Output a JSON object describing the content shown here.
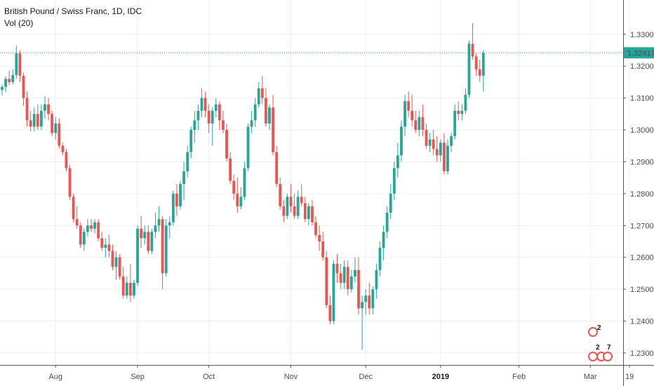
{
  "legend": {
    "symbol_line": "British Pound / Swiss Franc, 1D, IDC",
    "indicator_line": "Vol (20)"
  },
  "colors": {
    "up": "#26a69a",
    "down": "#ef5350",
    "grid": "#e8edf2",
    "axis_line": "#555555",
    "price_line": "#26a69a",
    "price_label_bg": "#26a69a",
    "badge": "#ef5350"
  },
  "badges": {
    "count_top": "2",
    "count_bottom_left": "2",
    "count_bottom_right": "7"
  },
  "chart_data": {
    "type": "candlestick",
    "title": "British Pound / Swiss Franc, 1D, IDC",
    "ylim": [
      1.228,
      1.337
    ],
    "yticks": [
      "1.33000",
      "1.32000",
      "1.31000",
      "1.30000",
      "1.29000",
      "1.28000",
      "1.27000",
      "1.26000",
      "1.25000",
      "1.24000",
      "1.23000"
    ],
    "xticks": [
      {
        "label": "Aug",
        "index": 15,
        "bold": false
      },
      {
        "label": "Sep",
        "index": 38,
        "bold": false
      },
      {
        "label": "Oct",
        "index": 58,
        "bold": false
      },
      {
        "label": "Nov",
        "index": 81,
        "bold": false
      },
      {
        "label": "Dec",
        "index": 102,
        "bold": false
      },
      {
        "label": "2019",
        "index": 123,
        "bold": true
      },
      {
        "label": "Feb",
        "index": 145,
        "bold": false
      },
      {
        "label": "Mar",
        "index": 165,
        "bold": false
      },
      {
        "label": "19",
        "index": 176,
        "bold": false
      }
    ],
    "last_price": "1.32417",
    "grid": true,
    "candles": [
      [
        1.3125,
        1.3142,
        1.3108,
        1.3135
      ],
      [
        1.3135,
        1.3168,
        1.3118,
        1.316
      ],
      [
        1.316,
        1.3185,
        1.314,
        1.315
      ],
      [
        1.315,
        1.319,
        1.3142,
        1.3172
      ],
      [
        1.3172,
        1.3265,
        1.316,
        1.324
      ],
      [
        1.324,
        1.325,
        1.315,
        1.317
      ],
      [
        1.317,
        1.318,
        1.3075,
        1.31
      ],
      [
        1.31,
        1.312,
        1.301,
        1.303
      ],
      [
        1.303,
        1.306,
        1.2995,
        1.301
      ],
      [
        1.301,
        1.307,
        1.2995,
        1.305
      ],
      [
        1.305,
        1.308,
        1.3,
        1.301
      ],
      [
        1.301,
        1.308,
        1.3,
        1.306
      ],
      [
        1.306,
        1.3105,
        1.3035,
        1.308
      ],
      [
        1.308,
        1.31,
        1.303,
        1.305
      ],
      [
        1.305,
        1.306,
        1.298,
        1.299
      ],
      [
        1.299,
        1.304,
        1.297,
        1.302
      ],
      [
        1.302,
        1.3035,
        1.294,
        1.295
      ],
      [
        1.295,
        1.296,
        1.292,
        1.293
      ],
      [
        1.293,
        1.294,
        1.287,
        1.288
      ],
      [
        1.288,
        1.289,
        1.278,
        1.279
      ],
      [
        1.279,
        1.28,
        1.271,
        1.272
      ],
      [
        1.272,
        1.276,
        1.269,
        1.27
      ],
      [
        1.27,
        1.271,
        1.263,
        1.264
      ],
      [
        1.264,
        1.269,
        1.262,
        1.268
      ],
      [
        1.268,
        1.272,
        1.2665,
        1.27
      ],
      [
        1.27,
        1.272,
        1.268,
        1.269
      ],
      [
        1.269,
        1.272,
        1.2675,
        1.271
      ],
      [
        1.271,
        1.272,
        1.265,
        1.266
      ],
      [
        1.266,
        1.268,
        1.262,
        1.263
      ],
      [
        1.263,
        1.266,
        1.26,
        1.264
      ],
      [
        1.264,
        1.267,
        1.26,
        1.262
      ],
      [
        1.262,
        1.264,
        1.256,
        1.257
      ],
      [
        1.257,
        1.262,
        1.253,
        1.26
      ],
      [
        1.26,
        1.261,
        1.253,
        1.254
      ],
      [
        1.254,
        1.257,
        1.247,
        1.248
      ],
      [
        1.248,
        1.254,
        1.247,
        1.252
      ],
      [
        1.252,
        1.258,
        1.246,
        1.248
      ],
      [
        1.248,
        1.253,
        1.247,
        1.252
      ],
      [
        1.252,
        1.27,
        1.251,
        1.269
      ],
      [
        1.269,
        1.273,
        1.263,
        1.266
      ],
      [
        1.266,
        1.27,
        1.264,
        1.268
      ],
      [
        1.268,
        1.27,
        1.261,
        1.262
      ],
      [
        1.262,
        1.269,
        1.261,
        1.268
      ],
      [
        1.268,
        1.274,
        1.266,
        1.27
      ],
      [
        1.27,
        1.276,
        1.268,
        1.272
      ],
      [
        1.272,
        1.273,
        1.25,
        1.255
      ],
      [
        1.255,
        1.272,
        1.254,
        1.27
      ],
      [
        1.27,
        1.273,
        1.266,
        1.271
      ],
      [
        1.271,
        1.281,
        1.27,
        1.28
      ],
      [
        1.28,
        1.283,
        1.273,
        1.276
      ],
      [
        1.276,
        1.284,
        1.275,
        1.283
      ],
      [
        1.283,
        1.29,
        1.278,
        1.287
      ],
      [
        1.287,
        1.295,
        1.285,
        1.293
      ],
      [
        1.293,
        1.301,
        1.291,
        1.3
      ],
      [
        1.3,
        1.306,
        1.296,
        1.303
      ],
      [
        1.303,
        1.308,
        1.3,
        1.306
      ],
      [
        1.306,
        1.313,
        1.304,
        1.31
      ],
      [
        1.31,
        1.312,
        1.304,
        1.306
      ],
      [
        1.306,
        1.308,
        1.299,
        1.302
      ],
      [
        1.302,
        1.307,
        1.295,
        1.306
      ],
      [
        1.306,
        1.31,
        1.304,
        1.308
      ],
      [
        1.308,
        1.309,
        1.3,
        1.303
      ],
      [
        1.303,
        1.306,
        1.299,
        1.3
      ],
      [
        1.3,
        1.302,
        1.29,
        1.291
      ],
      [
        1.291,
        1.293,
        1.283,
        1.284
      ],
      [
        1.284,
        1.286,
        1.278,
        1.28
      ],
      [
        1.28,
        1.285,
        1.274,
        1.276
      ],
      [
        1.276,
        1.282,
        1.275,
        1.279
      ],
      [
        1.279,
        1.29,
        1.278,
        1.288
      ],
      [
        1.288,
        1.302,
        1.287,
        1.301
      ],
      [
        1.301,
        1.306,
        1.299,
        1.303
      ],
      [
        1.303,
        1.31,
        1.301,
        1.308
      ],
      [
        1.308,
        1.315,
        1.307,
        1.313
      ],
      [
        1.313,
        1.317,
        1.308,
        1.31
      ],
      [
        1.31,
        1.313,
        1.301,
        1.302
      ],
      [
        1.302,
        1.308,
        1.3,
        1.307
      ],
      [
        1.307,
        1.311,
        1.292,
        1.293
      ],
      [
        1.293,
        1.295,
        1.282,
        1.283
      ],
      [
        1.283,
        1.285,
        1.275,
        1.276
      ],
      [
        1.276,
        1.278,
        1.271,
        1.273
      ],
      [
        1.273,
        1.28,
        1.272,
        1.279
      ],
      [
        1.279,
        1.283,
        1.274,
        1.276
      ],
      [
        1.276,
        1.28,
        1.272,
        1.273
      ],
      [
        1.273,
        1.281,
        1.272,
        1.279
      ],
      [
        1.279,
        1.283,
        1.276,
        1.277
      ],
      [
        1.277,
        1.279,
        1.271,
        1.272
      ],
      [
        1.272,
        1.277,
        1.27,
        1.276
      ],
      [
        1.276,
        1.278,
        1.27,
        1.271
      ],
      [
        1.271,
        1.273,
        1.266,
        1.267
      ],
      [
        1.267,
        1.27,
        1.262,
        1.265
      ],
      [
        1.265,
        1.268,
        1.259,
        1.26
      ],
      [
        1.26,
        1.262,
        1.244,
        1.245
      ],
      [
        1.245,
        1.248,
        1.239,
        1.24
      ],
      [
        1.24,
        1.259,
        1.239,
        1.258
      ],
      [
        1.258,
        1.261,
        1.252,
        1.255
      ],
      [
        1.255,
        1.258,
        1.25,
        1.252
      ],
      [
        1.252,
        1.259,
        1.25,
        1.257
      ],
      [
        1.257,
        1.259,
        1.248,
        1.25
      ],
      [
        1.25,
        1.256,
        1.249,
        1.254
      ],
      [
        1.254,
        1.26,
        1.252,
        1.256
      ],
      [
        1.256,
        1.26,
        1.242,
        1.244
      ],
      [
        1.244,
        1.248,
        1.231,
        1.246
      ],
      [
        1.246,
        1.25,
        1.242,
        1.248
      ],
      [
        1.248,
        1.252,
        1.242,
        1.244
      ],
      [
        1.244,
        1.251,
        1.242,
        1.25
      ],
      [
        1.25,
        1.258,
        1.247,
        1.256
      ],
      [
        1.256,
        1.265,
        1.254,
        1.263
      ],
      [
        1.263,
        1.27,
        1.259,
        1.268
      ],
      [
        1.268,
        1.276,
        1.266,
        1.274
      ],
      [
        1.274,
        1.283,
        1.272,
        1.28
      ],
      [
        1.28,
        1.29,
        1.278,
        1.288
      ],
      [
        1.288,
        1.296,
        1.285,
        1.292
      ],
      [
        1.292,
        1.303,
        1.29,
        1.301
      ],
      [
        1.301,
        1.311,
        1.298,
        1.309
      ],
      [
        1.309,
        1.312,
        1.304,
        1.306
      ],
      [
        1.306,
        1.311,
        1.301,
        1.303
      ],
      [
        1.303,
        1.306,
        1.299,
        1.3
      ],
      [
        1.3,
        1.306,
        1.298,
        1.304
      ],
      [
        1.304,
        1.308,
        1.298,
        1.3
      ],
      [
        1.3,
        1.302,
        1.294,
        1.295
      ],
      [
        1.295,
        1.299,
        1.293,
        1.297
      ],
      [
        1.297,
        1.3,
        1.292,
        1.294
      ],
      [
        1.294,
        1.298,
        1.29,
        1.292
      ],
      [
        1.292,
        1.297,
        1.29,
        1.296
      ],
      [
        1.296,
        1.299,
        1.286,
        1.287
      ],
      [
        1.287,
        1.297,
        1.286,
        1.295
      ],
      [
        1.295,
        1.299,
        1.293,
        1.298
      ],
      [
        1.298,
        1.308,
        1.297,
        1.306
      ],
      [
        1.306,
        1.309,
        1.303,
        1.305
      ],
      [
        1.305,
        1.308,
        1.303,
        1.306
      ],
      [
        1.306,
        1.313,
        1.305,
        1.311
      ],
      [
        1.311,
        1.328,
        1.31,
        1.327
      ],
      [
        1.327,
        1.3335,
        1.322,
        1.323
      ],
      [
        1.323,
        1.324,
        1.317,
        1.319
      ],
      [
        1.319,
        1.322,
        1.315,
        1.317
      ],
      [
        1.317,
        1.325,
        1.312,
        1.3241
      ]
    ]
  }
}
